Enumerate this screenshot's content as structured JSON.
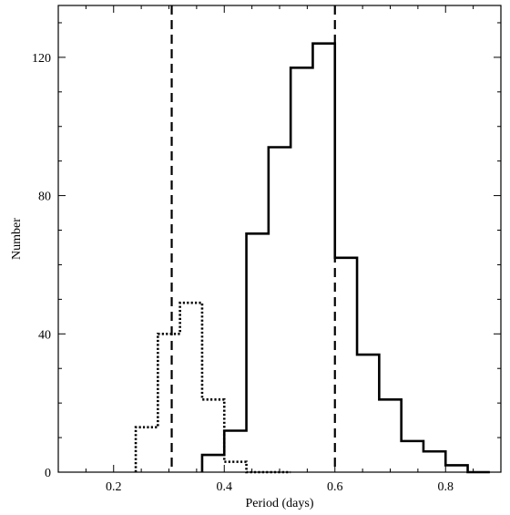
{
  "chart_data": {
    "type": "histogram",
    "title": "",
    "xlabel": "Period (days)",
    "ylabel": "Number",
    "xlim": [
      0.1,
      0.9
    ],
    "ylim": [
      0,
      135
    ],
    "x_ticks": [
      0.2,
      0.4,
      0.6,
      0.8
    ],
    "x_tick_labels": [
      "0.2",
      "0.4",
      "0.6",
      "0.8"
    ],
    "y_ticks": [
      0,
      40,
      80,
      120
    ],
    "y_tick_labels": [
      "0",
      "40",
      "80",
      "120"
    ],
    "grid": false,
    "legend": "none",
    "bin_width": 0.04,
    "series": [
      {
        "style": "solid",
        "color": "#000000",
        "bin_left_edges": [
          0.36,
          0.4,
          0.44,
          0.48,
          0.52,
          0.56,
          0.6,
          0.64,
          0.68,
          0.72,
          0.76,
          0.8,
          0.84
        ],
        "values": [
          5,
          12,
          69,
          94,
          117,
          124,
          62,
          34,
          21,
          9,
          6,
          2,
          0
        ]
      },
      {
        "style": "dotted",
        "color": "#000000",
        "bin_left_edges": [
          0.24,
          0.28,
          0.32,
          0.36,
          0.4,
          0.44,
          0.48
        ],
        "values": [
          13,
          40,
          49,
          21,
          3,
          0,
          0
        ]
      }
    ],
    "reference_lines": [
      {
        "x": 0.305,
        "style": "dashed"
      },
      {
        "x": 0.6,
        "style": "dashed"
      }
    ]
  }
}
